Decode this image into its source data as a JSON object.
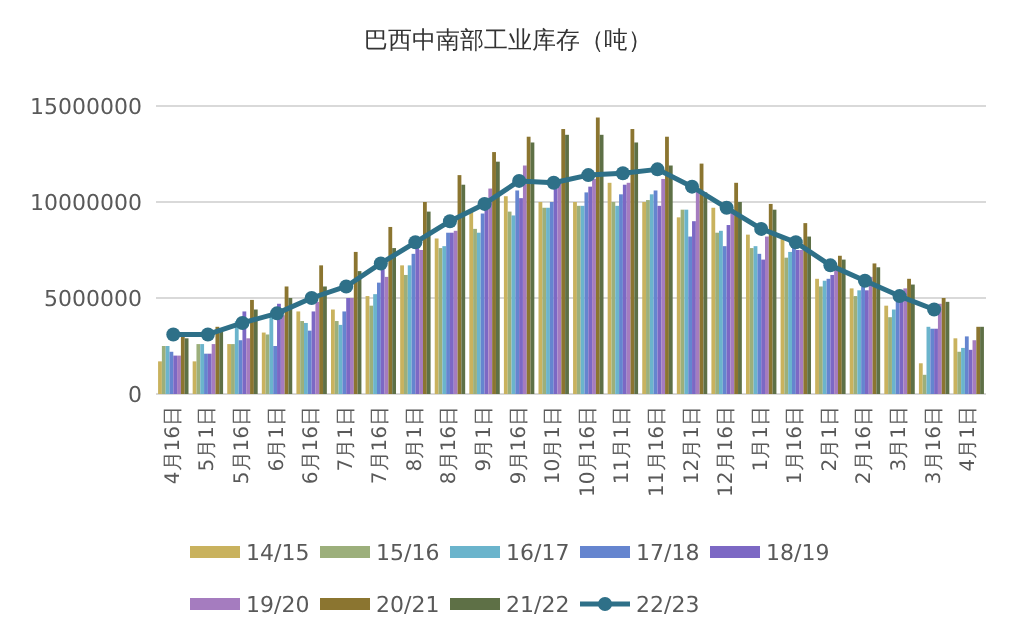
{
  "chart_data": {
    "type": "bar",
    "title": "巴西中南部工业库存（吨）",
    "categories": [
      "4月16日",
      "5月1日",
      "5月16日",
      "6月1日",
      "6月16日",
      "7月1日",
      "7月16日",
      "8月1日",
      "8月16日",
      "9月1日",
      "9月16日",
      "10月1日",
      "10月16日",
      "11月1日",
      "11月16日",
      "12月1日",
      "12月16日",
      "1月1日",
      "1月16日",
      "2月1日",
      "2月16日",
      "3月1日",
      "3月16日",
      "4月1日"
    ],
    "series": [
      {
        "name": "14/15",
        "color": "#c9b25e",
        "values": [
          1700000,
          1700000,
          2600000,
          3200000,
          4300000,
          4400000,
          5100000,
          6700000,
          8100000,
          9500000,
          10300000,
          10000000,
          10000000,
          11000000,
          10000000,
          9200000,
          9700000,
          8300000,
          8100000,
          6000000,
          5500000,
          4600000,
          1600000,
          2900000
        ]
      },
      {
        "name": "15/16",
        "color": "#9caf7b",
        "values": [
          2500000,
          2600000,
          2600000,
          3100000,
          3800000,
          3800000,
          4600000,
          6200000,
          7600000,
          8600000,
          9500000,
          9700000,
          9800000,
          10000000,
          10100000,
          9600000,
          8400000,
          7600000,
          7100000,
          5600000,
          5100000,
          4000000,
          1000000,
          2200000
        ]
      },
      {
        "name": "16/17",
        "color": "#6bb4cc",
        "values": [
          2500000,
          2600000,
          3800000,
          4100000,
          3700000,
          3600000,
          5200000,
          6700000,
          7700000,
          8400000,
          9300000,
          9700000,
          9800000,
          9800000,
          10400000,
          9600000,
          8500000,
          7700000,
          7400000,
          5900000,
          5400000,
          4400000,
          3500000,
          2400000
        ]
      },
      {
        "name": "17/18",
        "color": "#6585cf",
        "values": [
          2200000,
          2100000,
          2800000,
          2500000,
          3300000,
          4300000,
          5800000,
          7300000,
          8400000,
          9400000,
          10600000,
          10000000,
          10500000,
          10400000,
          10600000,
          8200000,
          7700000,
          7300000,
          7900000,
          6000000,
          5600000,
          4800000,
          3400000,
          3000000
        ]
      },
      {
        "name": "18/19",
        "color": "#7c68c4",
        "values": [
          2000000,
          2100000,
          4300000,
          4700000,
          4300000,
          5000000,
          6600000,
          7900000,
          8400000,
          9700000,
          10200000,
          10700000,
          10800000,
          10900000,
          9800000,
          9000000,
          8800000,
          7000000,
          7500000,
          6200000,
          5400000,
          4900000,
          3400000,
          2300000
        ]
      },
      {
        "name": "19/20",
        "color": "#a57cbf",
        "values": [
          2000000,
          2600000,
          2900000,
          4100000,
          4800000,
          5000000,
          6100000,
          7500000,
          8500000,
          10700000,
          11900000,
          11000000,
          11200000,
          11000000,
          11200000,
          10700000,
          9600000,
          8200000,
          7500000,
          6600000,
          6100000,
          5500000,
          4700000,
          2800000
        ]
      },
      {
        "name": "20/21",
        "color": "#8b7530",
        "values": [
          3000000,
          3500000,
          4900000,
          5600000,
          6700000,
          7400000,
          8700000,
          10000000,
          11400000,
          12600000,
          13400000,
          13800000,
          14400000,
          13800000,
          13400000,
          12000000,
          11000000,
          9900000,
          8900000,
          7200000,
          6800000,
          6000000,
          5000000,
          3500000
        ]
      },
      {
        "name": "21/22",
        "color": "#5e7046",
        "values": [
          2900000,
          3400000,
          4400000,
          5000000,
          5600000,
          6400000,
          7600000,
          9500000,
          10900000,
          12100000,
          13100000,
          13500000,
          13500000,
          13100000,
          11900000,
          10500000,
          10000000,
          9600000,
          8200000,
          7000000,
          6600000,
          5700000,
          4800000,
          3500000
        ]
      },
      {
        "name": "22/23",
        "color": "#2e7088",
        "type": "line",
        "values": [
          3100000,
          3100000,
          3700000,
          4200000,
          5000000,
          5600000,
          6800000,
          7900000,
          9000000,
          9900000,
          11100000,
          11000000,
          11400000,
          11500000,
          11700000,
          10800000,
          9700000,
          8600000,
          7900000,
          6700000,
          5900000,
          5100000,
          4400000,
          null
        ]
      }
    ],
    "ylim": [
      0,
      15000000
    ],
    "yticks": [
      0,
      5000000,
      10000000,
      15000000
    ],
    "grid": "y",
    "legend": "bottom",
    "marker": "circle",
    "line_style": "solid"
  }
}
